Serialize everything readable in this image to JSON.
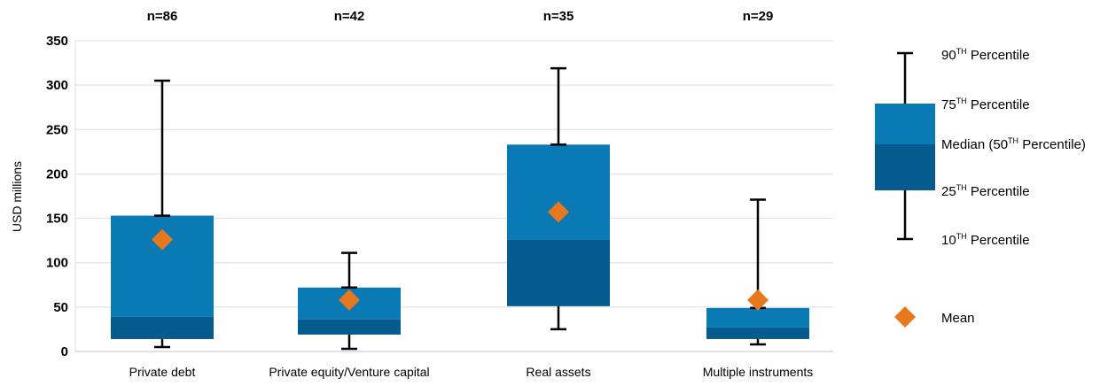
{
  "chart_data": {
    "type": "box",
    "ylabel": "USD millions",
    "ylim": [
      0,
      350
    ],
    "yticks": [
      "0",
      "50",
      "100",
      "150",
      "200",
      "250",
      "300",
      "350"
    ],
    "grid": true,
    "categories": [
      "Private debt",
      "Private equity/Venture capital",
      "Real assets",
      "Multiple instruments"
    ],
    "n_labels": [
      "n=86",
      "n=42",
      "n=35",
      "n=29"
    ],
    "boxes": [
      {
        "p10": 5,
        "p25": 14,
        "median": 39,
        "p75": 153,
        "p90": 305,
        "mean": 126
      },
      {
        "p10": 3,
        "p25": 19,
        "median": 36,
        "p75": 72,
        "p90": 111,
        "mean": 58
      },
      {
        "p10": 25,
        "p25": 51,
        "median": 126,
        "p75": 233,
        "p90": 319,
        "mean": 157
      },
      {
        "p10": 8,
        "p25": 14,
        "median": 27,
        "p75": 49,
        "p90": 171,
        "mean": 58
      }
    ],
    "colors": {
      "upper_box": "#0a7ab4",
      "lower_box": "#055b8e",
      "mean_marker": "#e8781e",
      "grid": "#e3e3e3",
      "whisker": "#000000"
    }
  },
  "legend": {
    "p90": {
      "prefix": "90",
      "sup": "TH",
      "suffix": " Percentile"
    },
    "p75": {
      "prefix": "75",
      "sup": "TH",
      "suffix": " Percentile"
    },
    "median": {
      "prefix": "Median (50",
      "sup": "TH",
      "suffix": " Percentile)"
    },
    "p25": {
      "prefix": "25",
      "sup": "TH",
      "suffix": " Percentile"
    },
    "p10": {
      "prefix": "10",
      "sup": "TH",
      "suffix": " Percentile"
    },
    "mean": "Mean"
  }
}
